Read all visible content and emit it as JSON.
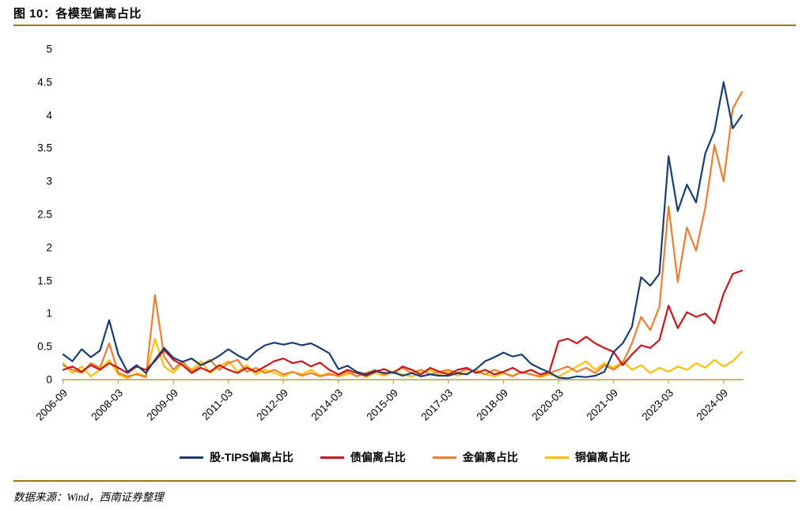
{
  "title": "图 10：各模型偏离占比",
  "source": "数据来源：Wind，西南证券整理",
  "colors": {
    "rule_gold": "#A0770B",
    "axis_line": "#BFA14A",
    "text": "#000000"
  },
  "chart_data": {
    "type": "line",
    "title": "图 10：各模型偏离占比",
    "xlabel": "",
    "ylabel": "",
    "ylim": [
      0,
      5
    ],
    "grid": false,
    "legend_position": "bottom",
    "x_frequency": "quarterly",
    "x_start": "2006-09",
    "x_end": "2025-03",
    "x_tick_labels": [
      "2006-09",
      "2008-03",
      "2009-09",
      "2011-03",
      "2012-09",
      "2014-03",
      "2015-09",
      "2017-03",
      "2018-09",
      "2020-03",
      "2021-09",
      "2023-03",
      "2024-09"
    ],
    "x_tick_indices": [
      0,
      6,
      12,
      18,
      24,
      30,
      36,
      42,
      48,
      54,
      60,
      66,
      72
    ],
    "y_ticks": [
      0,
      0.5,
      1,
      1.5,
      2,
      2.5,
      3,
      3.5,
      4,
      4.5,
      5
    ],
    "y_tick_labels": [
      "0",
      "0.5",
      "1",
      "1.5",
      "2",
      "2.5",
      "3",
      "3.5",
      "4",
      "4.5",
      "5"
    ],
    "series": [
      {
        "key": "stock-tips",
        "name": "股-TIPS偏离占比",
        "color": "#1A3E6F",
        "values": [
          0.38,
          0.28,
          0.46,
          0.34,
          0.44,
          0.9,
          0.38,
          0.12,
          0.22,
          0.1,
          0.3,
          0.48,
          0.33,
          0.27,
          0.32,
          0.22,
          0.28,
          0.36,
          0.46,
          0.37,
          0.3,
          0.43,
          0.52,
          0.56,
          0.53,
          0.56,
          0.52,
          0.55,
          0.48,
          0.4,
          0.16,
          0.21,
          0.12,
          0.08,
          0.13,
          0.1,
          0.11,
          0.06,
          0.1,
          0.05,
          0.08,
          0.06,
          0.06,
          0.1,
          0.08,
          0.16,
          0.28,
          0.34,
          0.41,
          0.35,
          0.38,
          0.24,
          0.17,
          0.11,
          0.03,
          0.02,
          0.05,
          0.04,
          0.06,
          0.12,
          0.42,
          0.55,
          0.8,
          1.55,
          1.42,
          1.6,
          3.38,
          2.55,
          2.95,
          2.68,
          3.42,
          3.76,
          4.5,
          3.8,
          4.0
        ]
      },
      {
        "key": "bond",
        "name": "债偏离占比",
        "color": "#C8161D",
        "values": [
          0.15,
          0.2,
          0.12,
          0.22,
          0.15,
          0.25,
          0.18,
          0.1,
          0.2,
          0.15,
          0.28,
          0.45,
          0.3,
          0.22,
          0.1,
          0.18,
          0.12,
          0.22,
          0.15,
          0.1,
          0.18,
          0.12,
          0.2,
          0.28,
          0.32,
          0.25,
          0.28,
          0.2,
          0.26,
          0.15,
          0.08,
          0.15,
          0.1,
          0.06,
          0.12,
          0.16,
          0.1,
          0.2,
          0.15,
          0.08,
          0.18,
          0.12,
          0.08,
          0.15,
          0.18,
          0.1,
          0.15,
          0.08,
          0.12,
          0.18,
          0.1,
          0.15,
          0.08,
          0.12,
          0.58,
          0.62,
          0.55,
          0.65,
          0.55,
          0.48,
          0.42,
          0.22,
          0.38,
          0.52,
          0.48,
          0.6,
          1.12,
          0.78,
          1.02,
          0.95,
          1.0,
          0.85,
          1.3,
          1.6,
          1.65
        ]
      },
      {
        "key": "gold",
        "name": "金偏离占比",
        "color": "#ED7D31",
        "values": [
          0.22,
          0.15,
          0.1,
          0.25,
          0.18,
          0.55,
          0.1,
          0.05,
          0.08,
          0.04,
          1.28,
          0.35,
          0.15,
          0.28,
          0.12,
          0.22,
          0.3,
          0.15,
          0.25,
          0.3,
          0.12,
          0.18,
          0.1,
          0.15,
          0.08,
          0.12,
          0.06,
          0.1,
          0.05,
          0.08,
          0.06,
          0.12,
          0.05,
          0.1,
          0.15,
          0.08,
          0.12,
          0.18,
          0.1,
          0.15,
          0.08,
          0.12,
          0.15,
          0.1,
          0.16,
          0.12,
          0.08,
          0.15,
          0.1,
          0.05,
          0.12,
          0.08,
          0.05,
          0.1,
          0.15,
          0.2,
          0.12,
          0.18,
          0.1,
          0.22,
          0.15,
          0.25,
          0.55,
          0.95,
          0.75,
          1.1,
          2.62,
          1.48,
          2.3,
          1.95,
          2.6,
          3.55,
          3.0,
          4.1,
          4.35
        ]
      },
      {
        "key": "copper",
        "name": "铜偏离占比",
        "color": "#FFC000",
        "values": [
          0.25,
          0.1,
          0.2,
          0.05,
          0.15,
          0.3,
          0.08,
          0.02,
          0.1,
          0.05,
          0.62,
          0.2,
          0.1,
          0.25,
          0.15,
          0.28,
          0.1,
          0.2,
          0.28,
          0.12,
          0.22,
          0.08,
          0.15,
          0.1,
          0.05,
          0.12,
          0.08,
          0.15,
          0.06,
          0.1,
          0.05,
          0.08,
          0.12,
          0.04,
          0.1,
          0.06,
          0.12,
          0.08,
          0.05,
          0.1,
          0.15,
          0.08,
          0.12,
          0.06,
          0.1,
          0.15,
          0.08,
          0.05,
          0.1,
          0.06,
          0.12,
          0.08,
          0.04,
          0.08,
          0.05,
          0.12,
          0.2,
          0.28,
          0.15,
          0.25,
          0.18,
          0.28,
          0.15,
          0.22,
          0.1,
          0.18,
          0.12,
          0.2,
          0.15,
          0.25,
          0.18,
          0.3,
          0.2,
          0.28,
          0.42
        ]
      }
    ]
  }
}
